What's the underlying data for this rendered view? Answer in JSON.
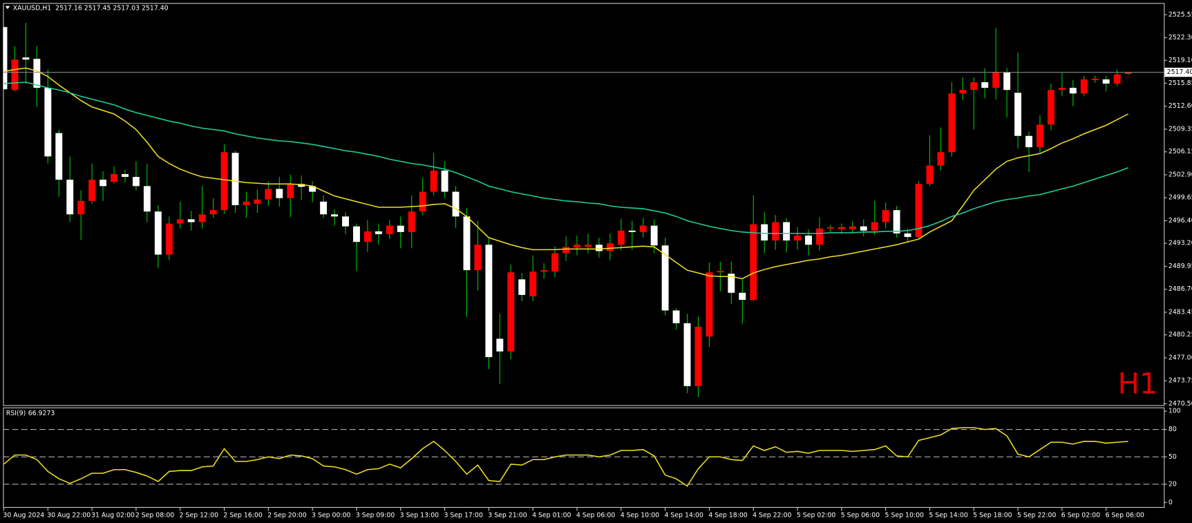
{
  "chart_data": [
    {
      "type": "candlestick",
      "title": "XAUUSD,H1  2517.16 2517.45 2517.03 2517.40",
      "watermark": "H1",
      "categories": [
        "30 Aug 2024",
        null,
        null,
        null,
        "30 Aug 22:00",
        null,
        null,
        null,
        "31 Aug 02:00",
        null,
        null,
        null,
        "2 Sep 08:00",
        null,
        null,
        null,
        "2 Sep 12:00",
        null,
        null,
        null,
        "2 Sep 16:00",
        null,
        null,
        null,
        "2 Sep 20:00",
        null,
        null,
        null,
        "3 Sep 00:00",
        null,
        null,
        null,
        "3 Sep 09:00",
        null,
        null,
        null,
        "3 Sep 13:00",
        null,
        null,
        null,
        "3 Sep 17:00",
        null,
        null,
        null,
        "3 Sep 21:00",
        null,
        null,
        null,
        "4 Sep 01:00",
        null,
        null,
        null,
        "4 Sep 06:00",
        null,
        null,
        null,
        "4 Sep 10:00",
        null,
        null,
        null,
        "4 Sep 14:00",
        null,
        null,
        null,
        "4 Sep 18:00",
        null,
        null,
        null,
        "4 Sep 22:00",
        null,
        null,
        null,
        "5 Sep 02:00",
        null,
        null,
        null,
        "5 Sep 06:00",
        null,
        null,
        null,
        "5 Sep 10:00",
        null,
        null,
        null,
        "5 Sep 14:00",
        null,
        null,
        null,
        "5 Sep 18:00",
        null,
        null,
        null,
        "5 Sep 22:00",
        null,
        null,
        null,
        "6 Sep 02:00",
        null,
        null,
        null,
        "6 Sep 06:00",
        null,
        null
      ],
      "open": [
        2523.8,
        2514.9,
        2519.5,
        2519.3,
        2515.2,
        2508.8,
        2502.2,
        2497.3,
        2499.2,
        2502.2,
        2501.9,
        2503.0,
        2502.6,
        2501.3,
        2497.7,
        2491.6,
        2496.0,
        2496.6,
        2496.2,
        2497.3,
        2497.9,
        2506.0,
        2498.6,
        2498.8,
        2499.4,
        2500.9,
        2499.6,
        2501.6,
        2501.3,
        2499.1,
        2497.3,
        2497.0,
        2495.6,
        2493.4,
        2494.9,
        2494.5,
        2495.7,
        2494.8,
        2497.7,
        2500.5,
        2503.5,
        2500.5,
        2497.0,
        2489.4,
        2493.0,
        2479.7,
        2477.9,
        2488.1,
        2485.7,
        2489.2,
        2489.2,
        2491.8,
        2492.6,
        2492.7,
        2493.0,
        2492.1,
        2493.0,
        2495.0,
        2494.8,
        2495.7,
        2492.9,
        2483.7,
        2481.9,
        2473.0,
        2480.0,
        2489.1,
        2488.9,
        2486.2,
        2485.2,
        2495.9,
        2493.6,
        2496.2,
        2493.6,
        2494.3,
        2493.0,
        2495.3,
        2495.2,
        2495.2,
        2495.6,
        2495.0,
        2496.2,
        2497.9,
        2494.6,
        2494.1,
        2501.6,
        2504.2,
        2506.1,
        2514.4,
        2514.9,
        2516.0,
        2515.2,
        2517.4,
        2514.5,
        2508.4,
        2506.8,
        2510.0,
        2514.9,
        2515.2,
        2514.4,
        2516.3,
        2516.4,
        2515.8,
        2517.16
      ],
      "high": [
        2524.0,
        2521.1,
        2524.4,
        2521.1,
        2517.8,
        2509.3,
        2505.5,
        2500.7,
        2504.5,
        2503.4,
        2504.1,
        2503.6,
        2504.8,
        2504.5,
        2498.6,
        2497.0,
        2499.1,
        2497.8,
        2501.3,
        2499.6,
        2507.2,
        2506.3,
        2500.5,
        2500.8,
        2502.0,
        2502.6,
        2502.9,
        2502.8,
        2502.0,
        2500.0,
        2498.0,
        2497.6,
        2496.0,
        2496.5,
        2496.0,
        2496.5,
        2497.0,
        2500.0,
        2502.5,
        2506.0,
        2504.8,
        2501.3,
        2498.2,
        2496.4,
        2494.0,
        2483.2,
        2490.2,
        2489.0,
        2491.5,
        2490.4,
        2492.8,
        2494.2,
        2494.3,
        2494.6,
        2494.0,
        2494.6,
        2496.7,
        2496.4,
        2496.8,
        2496.6,
        2494.0,
        2484.0,
        2483.2,
        2482.8,
        2490.5,
        2490.6,
        2490.6,
        2488.2,
        2500.0,
        2497.6,
        2497.2,
        2496.8,
        2495.5,
        2495.2,
        2496.9,
        2495.8,
        2496.0,
        2496.3,
        2496.6,
        2499.2,
        2499.0,
        2498.5,
        2495.3,
        2502.0,
        2508.5,
        2509.6,
        2516.0,
        2516.7,
        2516.7,
        2518.0,
        2523.7,
        2518.0,
        2520.2,
        2509.0,
        2511.3,
        2515.8,
        2517.3,
        2516.3,
        2516.9,
        2516.9,
        2516.9,
        2517.8,
        2517.45
      ],
      "low": [
        2514.8,
        2514.7,
        2515.8,
        2512.5,
        2504.5,
        2499.8,
        2496.2,
        2493.7,
        2498.8,
        2499.2,
        2501.7,
        2501.8,
        2500.7,
        2496.2,
        2489.7,
        2490.8,
        2495.3,
        2495.0,
        2495.3,
        2496.8,
        2497.4,
        2497.5,
        2496.8,
        2497.5,
        2498.5,
        2498.4,
        2496.9,
        2499.3,
        2499.0,
        2496.8,
        2495.7,
        2494.5,
        2489.3,
        2492.0,
        2493.0,
        2493.8,
        2492.5,
        2492.5,
        2497.2,
        2500.0,
        2499.6,
        2495.4,
        2482.8,
        2486.5,
        2475.4,
        2473.3,
        2476.8,
        2485.0,
        2485.0,
        2488.2,
        2488.4,
        2490.7,
        2491.5,
        2491.8,
        2491.2,
        2490.8,
        2492.2,
        2492.3,
        2494.0,
        2491.8,
        2483.0,
        2481.0,
        2472.0,
        2471.4,
        2478.5,
        2486.4,
        2484.6,
        2481.8,
        2485.0,
        2491.8,
        2492.3,
        2491.9,
        2492.3,
        2491.5,
        2492.2,
        2494.8,
        2494.5,
        2494.7,
        2494.2,
        2494.4,
        2495.3,
        2494.0,
        2493.4,
        2493.9,
        2501.3,
        2503.5,
        2505.5,
        2513.5,
        2509.3,
        2513.7,
        2513.6,
        2511.0,
        2506.6,
        2503.3,
        2506.0,
        2509.2,
        2514.0,
        2512.6,
        2514.0,
        2515.9,
        2514.7,
        2515.5,
        2517.03
      ],
      "close": [
        2515.0,
        2519.2,
        2519.2,
        2515.2,
        2505.5,
        2502.2,
        2497.3,
        2499.2,
        2502.2,
        2501.3,
        2503.0,
        2502.6,
        2501.3,
        2497.7,
        2491.6,
        2496.0,
        2496.6,
        2496.2,
        2497.3,
        2497.9,
        2506.1,
        2498.6,
        2499.1,
        2499.4,
        2500.9,
        2499.6,
        2501.6,
        2501.2,
        2500.5,
        2497.3,
        2497.0,
        2495.6,
        2493.4,
        2494.9,
        2494.5,
        2495.7,
        2494.8,
        2497.7,
        2500.5,
        2503.5,
        2500.5,
        2497.0,
        2489.4,
        2493.0,
        2477.1,
        2477.9,
        2489.1,
        2485.9,
        2489.2,
        2489.4,
        2491.8,
        2492.7,
        2493.0,
        2493.0,
        2492.1,
        2493.2,
        2495.0,
        2494.8,
        2495.7,
        2492.9,
        2483.7,
        2481.9,
        2473.0,
        2481.4,
        2489.1,
        2489.3,
        2486.2,
        2485.2,
        2495.9,
        2493.6,
        2496.2,
        2493.6,
        2494.3,
        2493.0,
        2495.3,
        2495.5,
        2495.5,
        2495.6,
        2495.0,
        2496.2,
        2497.9,
        2494.6,
        2494.1,
        2501.6,
        2504.2,
        2506.1,
        2514.4,
        2514.9,
        2516.0,
        2515.2,
        2517.4,
        2514.9,
        2508.4,
        2506.8,
        2510.0,
        2514.9,
        2515.2,
        2514.4,
        2516.4,
        2516.5,
        2515.8,
        2517.1,
        2517.4
      ],
      "up_color": "#ff0000",
      "down_color": "#ffffff",
      "wick_color": "#00c800",
      "series": [
        {
          "color": "#f0e21e",
          "values": [
            2517.5,
            2517.8,
            2518.0,
            2517.6,
            2516.8,
            2515.6,
            2514.5,
            2513.4,
            2512.5,
            2512.0,
            2511.5,
            2510.5,
            2509.3,
            2507.5,
            2505.5,
            2504.5,
            2503.7,
            2503.1,
            2502.6,
            2502.4,
            2502.2,
            2502.0,
            2501.8,
            2501.7,
            2501.6,
            2501.6,
            2501.6,
            2501.5,
            2501.3,
            2500.6,
            2499.9,
            2499.5,
            2499.1,
            2498.7,
            2498.3,
            2498.3,
            2498.3,
            2498.4,
            2498.5,
            2498.7,
            2498.8,
            2498.1,
            2497.0,
            2495.5,
            2494.0,
            2493.5,
            2493.0,
            2492.6,
            2492.3,
            2492.3,
            2492.3,
            2492.4,
            2492.4,
            2492.4,
            2492.4,
            2492.5,
            2492.6,
            2492.7,
            2492.8,
            2492.7,
            2491.6,
            2490.5,
            2489.4,
            2489.0,
            2488.6,
            2488.5,
            2488.5,
            2488.2,
            2489.0,
            2489.5,
            2489.9,
            2490.2,
            2490.5,
            2490.8,
            2491.0,
            2491.3,
            2491.5,
            2491.8,
            2492.1,
            2492.4,
            2492.7,
            2493.0,
            2493.4,
            2493.8,
            2494.8,
            2495.6,
            2496.4,
            2498.5,
            2500.7,
            2502.2,
            2503.7,
            2504.8,
            2505.3,
            2505.6,
            2505.9,
            2506.6,
            2507.4,
            2508.0,
            2508.7,
            2509.3,
            2509.9,
            2510.7,
            2511.5
          ]
        },
        {
          "color": "#1ed2a0",
          "values": [
            2515.8,
            2515.9,
            2516.0,
            2515.6,
            2515.2,
            2514.9,
            2514.5,
            2514.0,
            2513.6,
            2513.2,
            2512.8,
            2512.2,
            2511.7,
            2511.3,
            2510.9,
            2510.5,
            2510.2,
            2509.8,
            2509.5,
            2509.3,
            2509.1,
            2508.7,
            2508.4,
            2508.1,
            2507.9,
            2507.7,
            2507.6,
            2507.4,
            2507.2,
            2506.9,
            2506.6,
            2506.3,
            2506.1,
            2505.8,
            2505.5,
            2505.1,
            2504.8,
            2504.5,
            2504.3,
            2504.0,
            2503.7,
            2503.2,
            2502.6,
            2502.0,
            2501.3,
            2500.9,
            2500.5,
            2500.2,
            2499.9,
            2499.6,
            2499.4,
            2499.2,
            2499.1,
            2498.9,
            2498.8,
            2498.5,
            2498.3,
            2498.2,
            2498.1,
            2497.8,
            2497.5,
            2497.0,
            2496.4,
            2496.0,
            2495.6,
            2495.3,
            2495.0,
            2494.8,
            2494.7,
            2494.6,
            2494.6,
            2494.6,
            2494.6,
            2494.6,
            2494.6,
            2494.7,
            2494.7,
            2494.7,
            2494.8,
            2494.8,
            2494.9,
            2494.9,
            2495.0,
            2495.3,
            2495.7,
            2496.3,
            2497.0,
            2497.5,
            2498.1,
            2498.6,
            2499.1,
            2499.4,
            2499.6,
            2499.9,
            2500.1,
            2500.5,
            2500.9,
            2501.3,
            2501.8,
            2502.3,
            2502.8,
            2503.3,
            2503.9
          ]
        }
      ],
      "current_price": {
        "value": 2517.4,
        "label": "2517.40"
      },
      "current_price_color": "#8c8c8c",
      "ylim": [
        2470.3,
        2527.2
      ],
      "yticks": [
        2525.55,
        {
          "value": 2522.3,
          "label": "2522.30"
        },
        {
          "value": 2519.1,
          "label": "2519.10"
        },
        2515.85,
        {
          "value": 2512.6,
          "label": "2512.60"
        },
        2509.35,
        2506.15,
        {
          "value": 2502.9,
          "label": "2502.90"
        },
        2499.65,
        {
          "value": 2496.4,
          "label": "2496.40"
        },
        {
          "value": 2493.2,
          "label": "2493.20"
        },
        2489.95,
        {
          "value": 2486.7,
          "label": "2486.70"
        },
        2483.45,
        2480.25,
        {
          "value": 2477,
          "label": "2477.00"
        },
        2473.75,
        {
          "value": 2470.5,
          "label": "2470.50"
        }
      ],
      "grid": false
    },
    {
      "type": "line",
      "title": "RSI(9)",
      "series": [
        {
          "color": "#f0e21e",
          "values": [
            42,
            52,
            52,
            47,
            34,
            26,
            21,
            26,
            32,
            32,
            36,
            36,
            33,
            29,
            23,
            34,
            35,
            35,
            39,
            40,
            59,
            45,
            45,
            47,
            50,
            48,
            52,
            51,
            48,
            40,
            39,
            36,
            31,
            36,
            37,
            42,
            38,
            48,
            59,
            67,
            57,
            45,
            31,
            41,
            24,
            23,
            42,
            41,
            47,
            47,
            50,
            52,
            52,
            52,
            50,
            52,
            57,
            57,
            58,
            51,
            30,
            26,
            18,
            37,
            50,
            50,
            47,
            46,
            62,
            57,
            61,
            55,
            56,
            54,
            57,
            57,
            57,
            56,
            57,
            58,
            62,
            51,
            50,
            68,
            71,
            74,
            81,
            82,
            82,
            80,
            81,
            73,
            53,
            50,
            58,
            66,
            66,
            64,
            67,
            67,
            65,
            66,
            66.9273
          ]
        }
      ],
      "levels": [
        80,
        50,
        20
      ],
      "ylim": [
        -5,
        103.3
      ],
      "yticks": [
        100,
        80,
        50,
        20,
        0
      ],
      "grid": false
    }
  ]
}
